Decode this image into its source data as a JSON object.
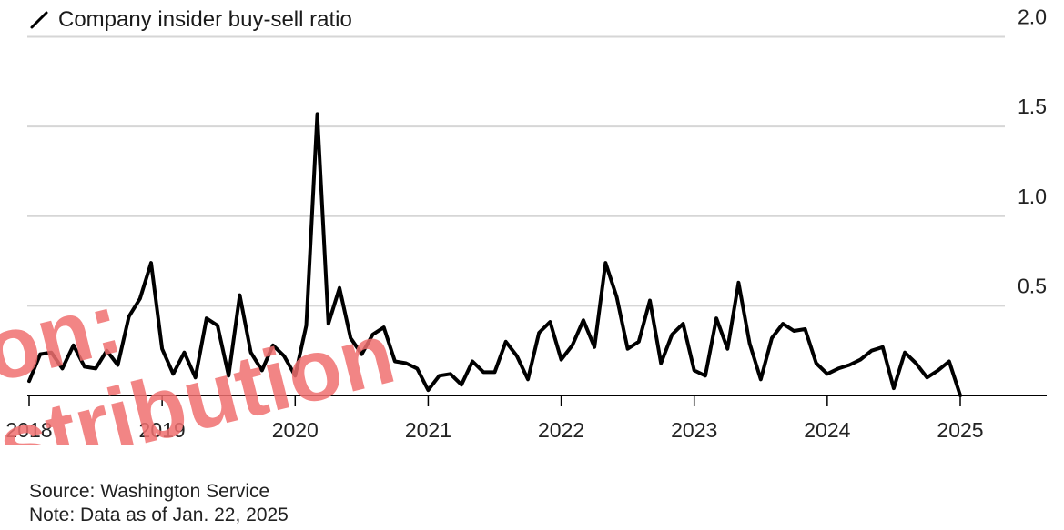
{
  "chart_data": {
    "type": "line",
    "title": "",
    "series": [
      {
        "name": "Company insider buy-sell ratio",
        "color": "#000000",
        "x": [
          "2018-01",
          "2018-02",
          "2018-03",
          "2018-04",
          "2018-05",
          "2018-06",
          "2018-07",
          "2018-08",
          "2018-09",
          "2018-10",
          "2018-11",
          "2018-12",
          "2019-01",
          "2019-02",
          "2019-03",
          "2019-04",
          "2019-05",
          "2019-06",
          "2019-07",
          "2019-08",
          "2019-09",
          "2019-10",
          "2019-11",
          "2019-12",
          "2020-01",
          "2020-02",
          "2020-03",
          "2020-04",
          "2020-05",
          "2020-06",
          "2020-07",
          "2020-08",
          "2020-09",
          "2020-10",
          "2020-11",
          "2020-12",
          "2021-01",
          "2021-02",
          "2021-03",
          "2021-04",
          "2021-05",
          "2021-06",
          "2021-07",
          "2021-08",
          "2021-09",
          "2021-10",
          "2021-11",
          "2021-12",
          "2022-01",
          "2022-02",
          "2022-03",
          "2022-04",
          "2022-05",
          "2022-06",
          "2022-07",
          "2022-08",
          "2022-09",
          "2022-10",
          "2022-11",
          "2022-12",
          "2023-01",
          "2023-02",
          "2023-03",
          "2023-04",
          "2023-05",
          "2023-06",
          "2023-07",
          "2023-08",
          "2023-09",
          "2023-10",
          "2023-11",
          "2023-12",
          "2024-01",
          "2024-02",
          "2024-03",
          "2024-04",
          "2024-05",
          "2024-06",
          "2024-07",
          "2024-08",
          "2024-09",
          "2024-10",
          "2024-11",
          "2024-12",
          "2025-01"
        ],
        "y": [
          0.08,
          0.23,
          0.24,
          0.15,
          0.28,
          0.16,
          0.15,
          0.25,
          0.17,
          0.44,
          0.54,
          0.74,
          0.26,
          0.12,
          0.24,
          0.1,
          0.43,
          0.39,
          0.11,
          0.56,
          0.24,
          0.14,
          0.28,
          0.22,
          0.11,
          0.39,
          1.57,
          0.4,
          0.6,
          0.32,
          0.23,
          0.34,
          0.38,
          0.19,
          0.18,
          0.15,
          0.03,
          0.11,
          0.12,
          0.06,
          0.19,
          0.13,
          0.13,
          0.3,
          0.22,
          0.09,
          0.35,
          0.41,
          0.2,
          0.28,
          0.42,
          0.27,
          0.74,
          0.55,
          0.26,
          0.3,
          0.53,
          0.18,
          0.34,
          0.4,
          0.14,
          0.11,
          0.43,
          0.26,
          0.63,
          0.29,
          0.09,
          0.32,
          0.4,
          0.36,
          0.37,
          0.18,
          0.12,
          0.15,
          0.17,
          0.2,
          0.25,
          0.27,
          0.04,
          0.24,
          0.18,
          0.1,
          0.14,
          0.19,
          0.0
        ]
      }
    ],
    "x_ticks": [
      "2018",
      "2019",
      "2020",
      "2021",
      "2022",
      "2023",
      "2024",
      "2025"
    ],
    "y_ticks": [
      "2.0",
      "1.5",
      "1.0",
      "0.5"
    ],
    "ylim": [
      0,
      2.0
    ],
    "xlim": [
      "2017-11",
      "2025-06"
    ],
    "grid": true,
    "y_axis_side": "right",
    "legend_position": "top-left"
  },
  "footer": {
    "source": "Source: Washington Service",
    "note": "Note: Data as of Jan. 22, 2025"
  },
  "watermark": {
    "line1": "on:",
    "line2": "stribution",
    "color": "#f07070"
  }
}
